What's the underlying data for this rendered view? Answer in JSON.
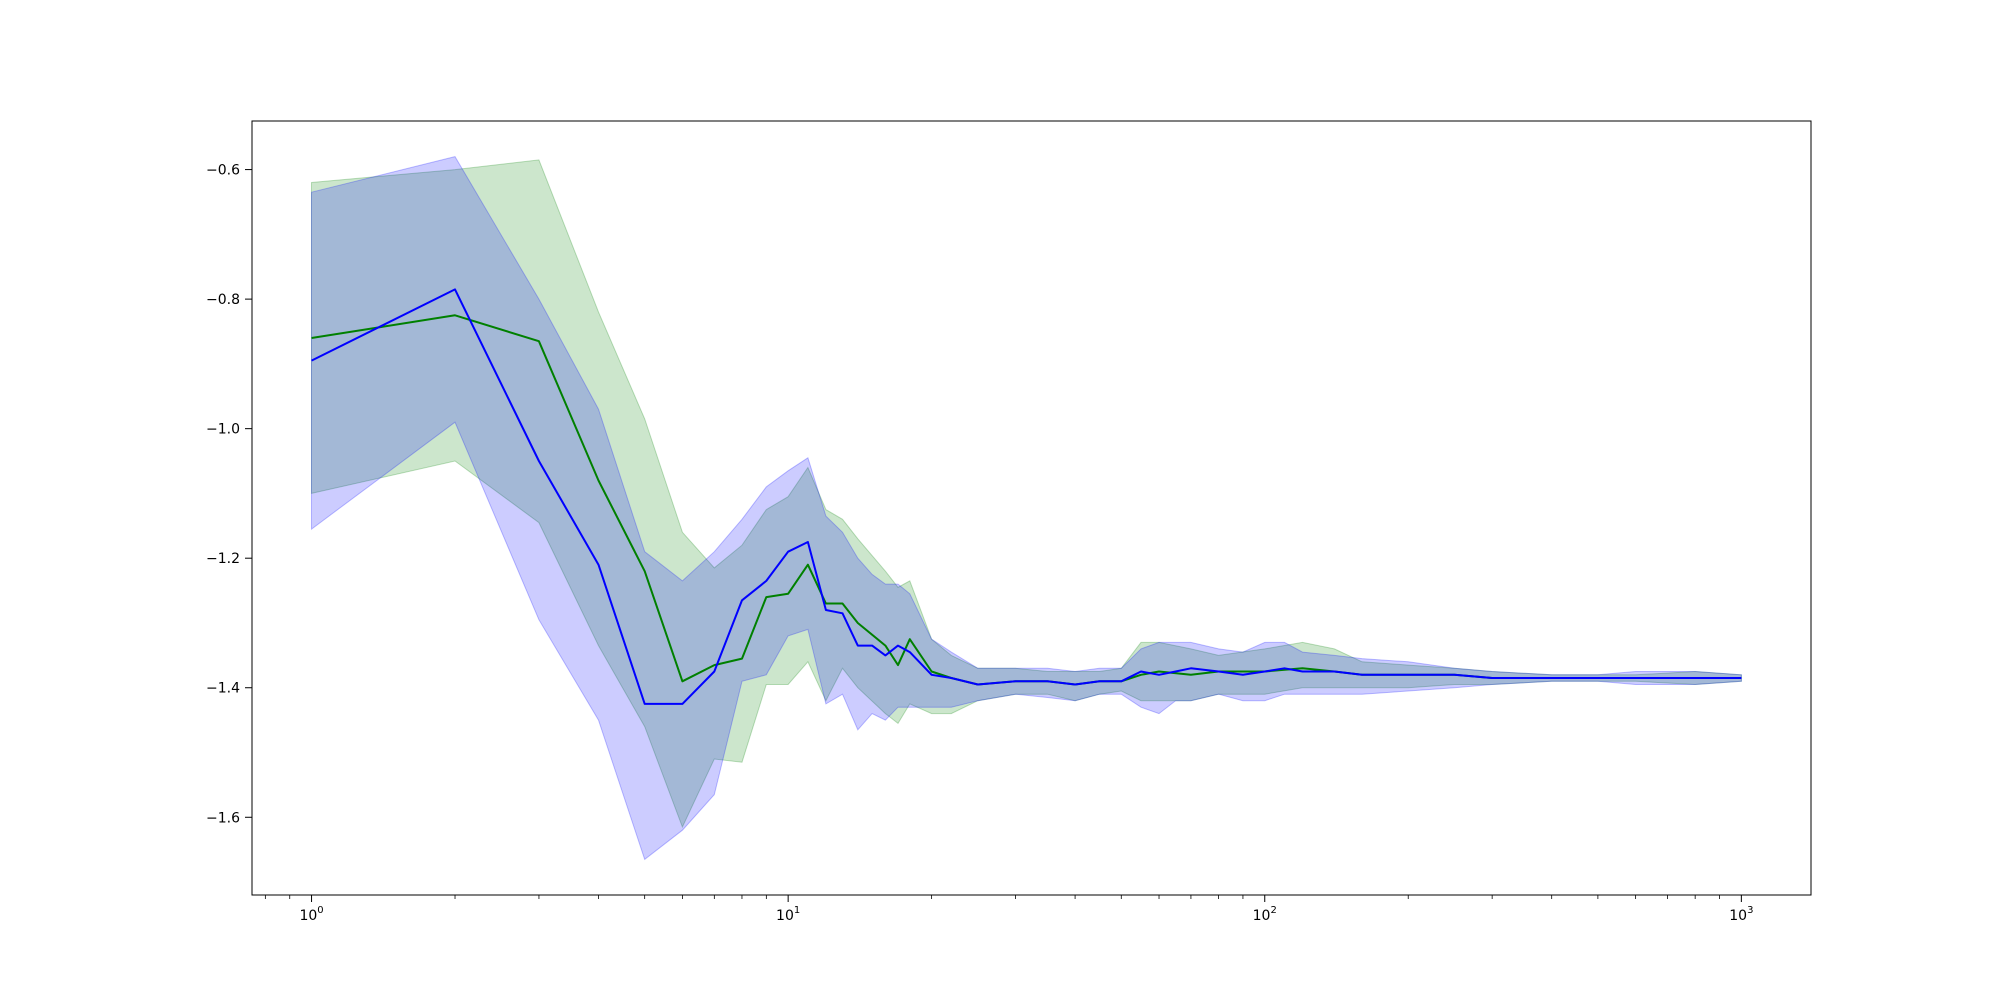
{
  "chart_data": {
    "type": "line",
    "title": "",
    "xlabel": "",
    "ylabel": "",
    "xscale": "log",
    "xlim": [
      0.75,
      1400
    ],
    "ylim": [
      -1.72,
      -0.525
    ],
    "grid": false,
    "x_ticks": [
      {
        "value": 1,
        "base": "10",
        "exp": "0"
      },
      {
        "value": 10,
        "base": "10",
        "exp": "1"
      },
      {
        "value": 100,
        "base": "10",
        "exp": "2"
      },
      {
        "value": 1000,
        "base": "10",
        "exp": "3"
      }
    ],
    "y_ticks": [
      {
        "value": -0.6,
        "label": "−0.6"
      },
      {
        "value": -0.8,
        "label": "−0.8"
      },
      {
        "value": -1.0,
        "label": "−1.0"
      },
      {
        "value": -1.2,
        "label": "−1.2"
      },
      {
        "value": -1.4,
        "label": "−1.4"
      },
      {
        "value": -1.6,
        "label": "−1.6"
      }
    ],
    "series": [
      {
        "color": "#008000",
        "band_color": "#008000",
        "band_opacity": 0.2,
        "points": [
          [
            1,
            -0.86,
            -1.1,
            -0.62
          ],
          [
            2,
            -0.825,
            -1.05,
            -0.6
          ],
          [
            3,
            -0.865,
            -1.145,
            -0.585
          ],
          [
            4,
            -1.08,
            -1.335,
            -0.82
          ],
          [
            5,
            -1.22,
            -1.46,
            -0.985
          ],
          [
            6,
            -1.39,
            -1.615,
            -1.16
          ],
          [
            7,
            -1.365,
            -1.51,
            -1.215
          ],
          [
            8,
            -1.355,
            -1.515,
            -1.18
          ],
          [
            9,
            -1.26,
            -1.395,
            -1.125
          ],
          [
            10,
            -1.255,
            -1.395,
            -1.105
          ],
          [
            11,
            -1.21,
            -1.36,
            -1.06
          ],
          [
            12,
            -1.27,
            -1.42,
            -1.125
          ],
          [
            13,
            -1.27,
            -1.37,
            -1.14
          ],
          [
            14,
            -1.3,
            -1.4,
            -1.17
          ],
          [
            16,
            -1.335,
            -1.44,
            -1.22
          ],
          [
            17,
            -1.365,
            -1.455,
            -1.245
          ],
          [
            18,
            -1.325,
            -1.425,
            -1.235
          ],
          [
            20,
            -1.375,
            -1.44,
            -1.325
          ],
          [
            22,
            -1.385,
            -1.44,
            -1.35
          ],
          [
            25,
            -1.395,
            -1.42,
            -1.37
          ],
          [
            30,
            -1.39,
            -1.41,
            -1.37
          ],
          [
            35,
            -1.39,
            -1.41,
            -1.375
          ],
          [
            40,
            -1.395,
            -1.42,
            -1.375
          ],
          [
            45,
            -1.39,
            -1.41,
            -1.375
          ],
          [
            50,
            -1.39,
            -1.405,
            -1.37
          ],
          [
            55,
            -1.38,
            -1.42,
            -1.33
          ],
          [
            60,
            -1.375,
            -1.42,
            -1.33
          ],
          [
            70,
            -1.38,
            -1.42,
            -1.34
          ],
          [
            80,
            -1.375,
            -1.41,
            -1.35
          ],
          [
            100,
            -1.375,
            -1.41,
            -1.34
          ],
          [
            120,
            -1.37,
            -1.4,
            -1.33
          ],
          [
            140,
            -1.375,
            -1.4,
            -1.34
          ],
          [
            160,
            -1.38,
            -1.4,
            -1.36
          ],
          [
            200,
            -1.38,
            -1.4,
            -1.365
          ],
          [
            250,
            -1.38,
            -1.395,
            -1.37
          ],
          [
            300,
            -1.385,
            -1.395,
            -1.375
          ],
          [
            400,
            -1.385,
            -1.39,
            -1.38
          ],
          [
            600,
            -1.385,
            -1.39,
            -1.38
          ],
          [
            800,
            -1.385,
            -1.395,
            -1.375
          ],
          [
            1000,
            -1.385,
            -1.39,
            -1.38
          ]
        ]
      },
      {
        "color": "#0000ff",
        "band_color": "#0000ff",
        "band_opacity": 0.2,
        "points": [
          [
            1,
            -0.895,
            -1.155,
            -0.635
          ],
          [
            2,
            -0.785,
            -0.99,
            -0.58
          ],
          [
            3,
            -1.05,
            -1.295,
            -0.8
          ],
          [
            4,
            -1.21,
            -1.45,
            -0.97
          ],
          [
            5,
            -1.425,
            -1.665,
            -1.19
          ],
          [
            6,
            -1.425,
            -1.62,
            -1.235
          ],
          [
            7,
            -1.375,
            -1.565,
            -1.19
          ],
          [
            8,
            -1.265,
            -1.39,
            -1.14
          ],
          [
            9,
            -1.235,
            -1.38,
            -1.09
          ],
          [
            10,
            -1.19,
            -1.32,
            -1.065
          ],
          [
            11,
            -1.175,
            -1.31,
            -1.045
          ],
          [
            12,
            -1.28,
            -1.425,
            -1.135
          ],
          [
            13,
            -1.285,
            -1.41,
            -1.16
          ],
          [
            14,
            -1.335,
            -1.465,
            -1.2
          ],
          [
            15,
            -1.335,
            -1.44,
            -1.225
          ],
          [
            16,
            -1.35,
            -1.45,
            -1.24
          ],
          [
            17,
            -1.335,
            -1.43,
            -1.24
          ],
          [
            18,
            -1.345,
            -1.43,
            -1.255
          ],
          [
            20,
            -1.38,
            -1.43,
            -1.325
          ],
          [
            22,
            -1.385,
            -1.43,
            -1.345
          ],
          [
            25,
            -1.395,
            -1.42,
            -1.37
          ],
          [
            30,
            -1.39,
            -1.41,
            -1.37
          ],
          [
            35,
            -1.39,
            -1.415,
            -1.37
          ],
          [
            40,
            -1.395,
            -1.42,
            -1.375
          ],
          [
            45,
            -1.39,
            -1.41,
            -1.37
          ],
          [
            50,
            -1.39,
            -1.41,
            -1.37
          ],
          [
            55,
            -1.375,
            -1.43,
            -1.34
          ],
          [
            60,
            -1.38,
            -1.44,
            -1.33
          ],
          [
            65,
            -1.375,
            -1.42,
            -1.33
          ],
          [
            70,
            -1.37,
            -1.42,
            -1.33
          ],
          [
            80,
            -1.375,
            -1.41,
            -1.34
          ],
          [
            90,
            -1.38,
            -1.42,
            -1.345
          ],
          [
            100,
            -1.375,
            -1.42,
            -1.33
          ],
          [
            110,
            -1.37,
            -1.41,
            -1.33
          ],
          [
            120,
            -1.375,
            -1.41,
            -1.345
          ],
          [
            140,
            -1.375,
            -1.41,
            -1.35
          ],
          [
            160,
            -1.38,
            -1.41,
            -1.355
          ],
          [
            200,
            -1.38,
            -1.405,
            -1.36
          ],
          [
            250,
            -1.38,
            -1.4,
            -1.37
          ],
          [
            300,
            -1.385,
            -1.395,
            -1.375
          ],
          [
            400,
            -1.385,
            -1.39,
            -1.38
          ],
          [
            500,
            -1.385,
            -1.39,
            -1.38
          ],
          [
            600,
            -1.385,
            -1.395,
            -1.375
          ],
          [
            800,
            -1.385,
            -1.395,
            -1.375
          ],
          [
            1000,
            -1.385,
            -1.39,
            -1.38
          ]
        ]
      }
    ]
  }
}
